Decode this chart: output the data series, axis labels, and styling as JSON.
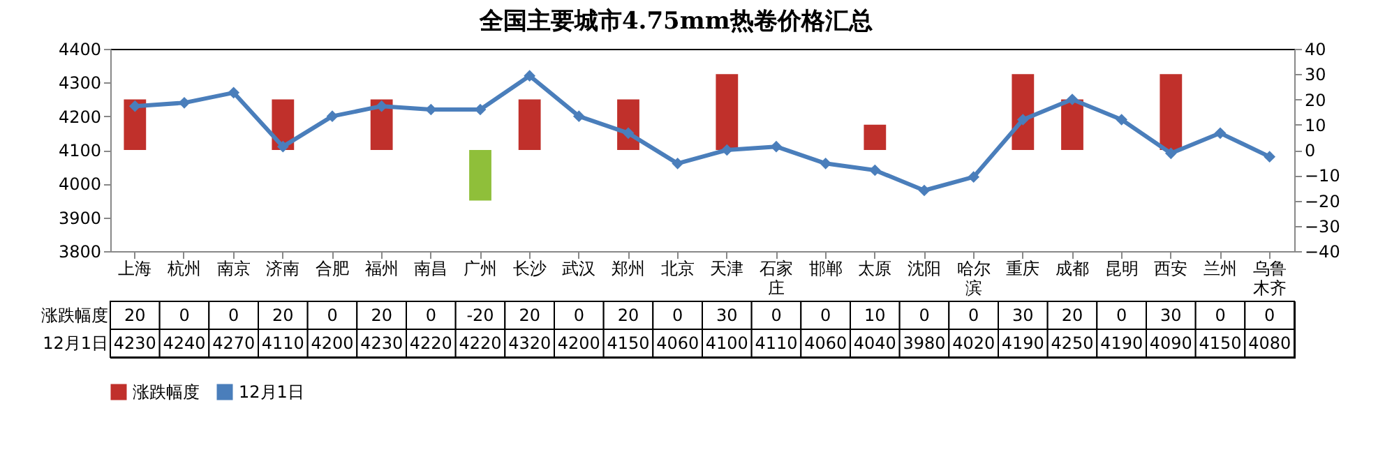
{
  "chart_data": {
    "type": "bar",
    "title": "全国主要城市4.75mm热卷价格汇总",
    "categories": [
      "上海",
      "杭州",
      "南京",
      "济南",
      "合肥",
      "福州",
      "南昌",
      "广州",
      "长沙",
      "武汉",
      "郑州",
      "北京",
      "天津",
      "石家庄",
      "邯郸",
      "太原",
      "沈阳",
      "哈尔滨",
      "重庆",
      "成都",
      "昆明",
      "西安",
      "兰州",
      "乌鲁木齐"
    ],
    "series": [
      {
        "name": "涨跌幅度",
        "axis": "y2",
        "color": "#c0302b",
        "colors": [
          "#c0302b",
          "#c0302b",
          "#c0302b",
          "#c0302b",
          "#c0302b",
          "#c0302b",
          "#c0302b",
          "#8fbf3a",
          "#c0302b",
          "#c0302b",
          "#c0302b",
          "#c0302b",
          "#c0302b",
          "#c0302b",
          "#c0302b",
          "#c0302b",
          "#c0302b",
          "#c0302b",
          "#c0302b",
          "#c0302b",
          "#c0302b",
          "#c0302b",
          "#c0302b",
          "#c0302b"
        ],
        "values": [
          20,
          0,
          0,
          20,
          0,
          20,
          0,
          -20,
          20,
          0,
          20,
          0,
          30,
          0,
          0,
          10,
          0,
          0,
          30,
          20,
          0,
          30,
          0,
          0
        ]
      },
      {
        "name": "12月1日",
        "type": "line",
        "color": "#4a7ebb",
        "values": [
          4230,
          4240,
          4270,
          4110,
          4200,
          4230,
          4220,
          4220,
          4320,
          4200,
          4150,
          4060,
          4100,
          4110,
          4060,
          4040,
          3980,
          4020,
          4190,
          4250,
          4190,
          4090,
          4150,
          4080
        ]
      }
    ],
    "ylim": [
      3800,
      4400
    ],
    "yticks": [
      3800,
      3900,
      4000,
      4100,
      4200,
      4300,
      4400
    ],
    "y2lim": [
      -40,
      40
    ],
    "y2ticks": [
      -40,
      -30,
      -20,
      -10,
      0,
      10,
      20,
      30,
      40
    ],
    "marker": "diamond",
    "data_labels": true,
    "legend": "bottom"
  }
}
